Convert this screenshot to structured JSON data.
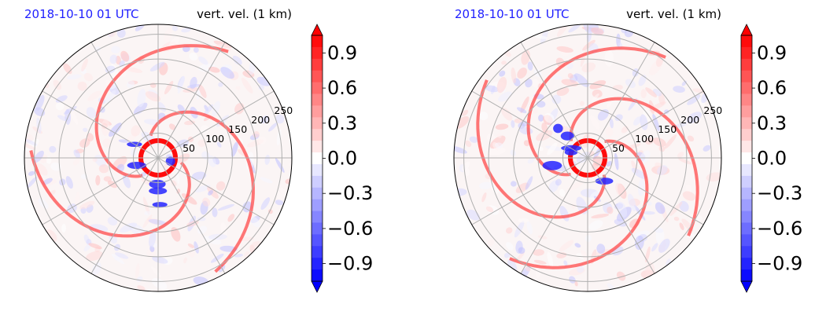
{
  "panels": [
    {
      "time_label": "2018-10-10 01 UTC",
      "field_label": "vert. vel. (1 km)",
      "radial_labels": [
        "50",
        "100",
        "150",
        "200",
        "250"
      ],
      "colorbar_ticks": [
        "0.9",
        "0.6",
        "0.3",
        "0.0",
        "−0.3",
        "−0.6",
        "−0.9"
      ]
    },
    {
      "time_label": "2018-10-10 01 UTC",
      "field_label": "vert. vel. (1 km)",
      "radial_labels": [
        "50",
        "100",
        "150",
        "200",
        "250"
      ],
      "colorbar_ticks": [
        "0.9",
        "0.6",
        "0.3",
        "0.0",
        "−0.3",
        "−0.6",
        "−0.9"
      ]
    }
  ],
  "chart_data": [
    {
      "type": "heatmap",
      "projection": "polar",
      "title_left": "2018-10-10 01 UTC",
      "title_right": "vert. vel. (1 km)",
      "radial_ticks": [
        50,
        100,
        150,
        200,
        250
      ],
      "radial_tick_labels": [
        "50",
        "100",
        "150",
        "200",
        "250"
      ],
      "radial_max": 270,
      "angular_grid_deg": 30,
      "colorbar": {
        "vmin": -1.05,
        "vmax": 1.05,
        "levels": 21,
        "ticks": [
          0.9,
          0.6,
          0.3,
          0.0,
          -0.3,
          -0.6,
          -0.9
        ],
        "extend": "both",
        "cmap": "bwr"
      },
      "colors": {
        "positive": "#ff0000",
        "negative": "#0000ff",
        "neutral": "#ffffff",
        "time_label": "#1f1fff",
        "grid": "#b0b0b0"
      },
      "grid": true
    },
    {
      "type": "heatmap",
      "projection": "polar",
      "title_left": "2018-10-10 01 UTC",
      "title_right": "vert. vel. (1 km)",
      "radial_ticks": [
        50,
        100,
        150,
        200,
        250
      ],
      "radial_tick_labels": [
        "50",
        "100",
        "150",
        "200",
        "250"
      ],
      "radial_max": 270,
      "angular_grid_deg": 30,
      "colorbar": {
        "vmin": -1.05,
        "vmax": 1.05,
        "levels": 21,
        "ticks": [
          0.9,
          0.6,
          0.3,
          0.0,
          -0.3,
          -0.6,
          -0.9
        ],
        "extend": "both",
        "cmap": "bwr"
      },
      "colors": {
        "positive": "#ff0000",
        "negative": "#0000ff",
        "neutral": "#ffffff",
        "time_label": "#1f1fff",
        "grid": "#b0b0b0"
      },
      "grid": true
    }
  ]
}
